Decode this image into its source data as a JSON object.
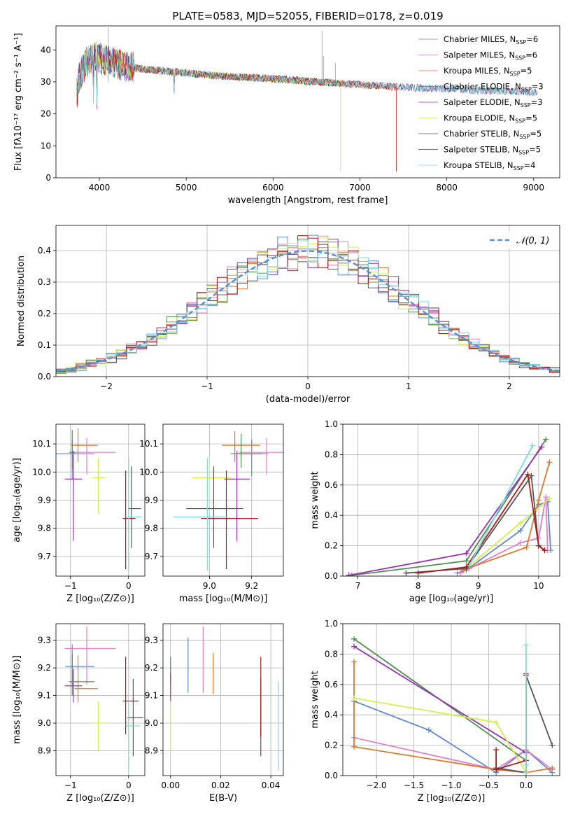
{
  "figure_title": "PLATE=0583, MJD=52055, FIBERID=0178, z=0.019",
  "colors": {
    "Chabrier MILES": "#5f87d8",
    "Salpeter MILES": "#e57fc5",
    "Kroupa MILES": "#e0782b",
    "Chabrier ELODIE": "#4e8f4f",
    "Salpeter ELODIE": "#9a30b8",
    "Kroupa ELODIE": "#d4f04a",
    "Chabrier STELIB": "#555555",
    "Salpeter STELIB": "#b01818",
    "Kroupa STELIB": "#78dde2",
    "normal": "#5b8fd6"
  },
  "chart_data": [
    {
      "id": "spectrum",
      "type": "line",
      "xlabel": "wavelength [Angstrom, rest frame]",
      "ylabel": "Flux [fλ10⁻¹⁷ erg cm⁻² s⁻¹ A⁻¹]",
      "xlim": [
        3500,
        9300
      ],
      "ylim": [
        0,
        47.5
      ],
      "xticks": [
        4000,
        5000,
        6000,
        7000,
        8000,
        9000
      ],
      "yticks": [
        0,
        10,
        20,
        30,
        40
      ],
      "grid": false,
      "legend_position": "upper-right",
      "continuum": {
        "x": [
          3750,
          3850,
          3950,
          4050,
          4150,
          4300,
          4500,
          4700,
          4900,
          5100,
          5300,
          5600,
          6000,
          6400,
          6800,
          7200,
          7600,
          8000,
          8400,
          8800,
          9050
        ],
        "y": [
          30,
          36,
          38,
          37,
          36,
          35,
          34,
          33.5,
          33,
          32.5,
          32,
          31.5,
          31,
          30.2,
          29.5,
          28.8,
          28.2,
          27.8,
          27.3,
          27,
          26.5
        ]
      },
      "series": [
        {
          "name": "Chabrier MILES",
          "nssp": 6
        },
        {
          "name": "Salpeter MILES",
          "nssp": 6
        },
        {
          "name": "Kroupa MILES",
          "nssp": 5
        },
        {
          "name": "Chabrier ELODIE",
          "nssp": 3
        },
        {
          "name": "Salpeter ELODIE",
          "nssp": 3
        },
        {
          "name": "Kroupa ELODIE",
          "nssp": 5
        },
        {
          "name": "Chabrier STELIB",
          "nssp": 5
        },
        {
          "name": "Salpeter STELIB",
          "nssp": 5
        },
        {
          "name": "Kroupa STELIB",
          "nssp": 4
        }
      ]
    },
    {
      "id": "residuals",
      "type": "line",
      "xlabel": "(data-model)/error",
      "ylabel": "Normed distribution",
      "xlim": [
        -2.5,
        2.5
      ],
      "ylim": [
        0,
        0.48
      ],
      "xticks": [
        -2,
        -1,
        0,
        1,
        2
      ],
      "yticks": [
        0.0,
        0.1,
        0.2,
        0.3,
        0.4
      ],
      "grid": true,
      "legend": "𝒩(0, 1)",
      "legend_position": "upper-right",
      "bin_width": 0.1
    },
    {
      "id": "age-vs-Z",
      "type": "scatter",
      "xlabel": "Z [log₁₀(Z/Z⊙)]",
      "ylabel": "age  [log₁₀(age/yr)]",
      "xlim": [
        -1.25,
        0.28
      ],
      "ylim": [
        9.63,
        10.17
      ],
      "xticks": [
        -1,
        0
      ],
      "yticks": [
        9.7,
        9.8,
        9.9,
        10.0,
        10.1
      ],
      "grid": true,
      "points": [
        {
          "series": "Chabrier MILES",
          "x": -0.97,
          "xerr": [
            0.28,
            0.38
          ],
          "y": 10.065,
          "yerr": [
            0.09,
            0.05
          ]
        },
        {
          "series": "Salpeter MILES",
          "x": -0.72,
          "xerr": [
            0.22,
            0.5
          ],
          "y": 10.07,
          "yerr": [
            0.08,
            0.05
          ]
        },
        {
          "series": "Kroupa MILES",
          "x": -0.87,
          "xerr": [
            0.12,
            0.34
          ],
          "y": 10.095,
          "yerr": [
            0.06,
            0.06
          ]
        },
        {
          "series": "Chabrier ELODIE",
          "x": -0.97,
          "xerr": [
            0.05,
            0.05
          ],
          "y": 10.07,
          "yerr": [
            0.06,
            0.08
          ]
        },
        {
          "series": "Salpeter ELODIE",
          "x": -0.95,
          "xerr": [
            0.15,
            0.15
          ],
          "y": 9.975,
          "yerr": [
            0.22,
            0.1
          ]
        },
        {
          "series": "Kroupa ELODIE",
          "x": -0.52,
          "xerr": [
            0.1,
            0.12
          ],
          "y": 9.98,
          "yerr": [
            0.13,
            0.07
          ]
        },
        {
          "series": "Chabrier STELIB",
          "x": 0.05,
          "xerr": [
            0.06,
            0.17
          ],
          "y": 9.87,
          "yerr": [
            0.14,
            0.15
          ]
        },
        {
          "series": "Salpeter STELIB",
          "x": -0.05,
          "xerr": [
            0.05,
            0.17
          ],
          "y": 9.835,
          "yerr": [
            0.18,
            0.17
          ]
        },
        {
          "series": "Kroupa STELIB",
          "x": 0.0,
          "xerr": [
            0.05,
            0.22
          ],
          "y": 9.84,
          "yerr": [
            0.19,
            0.21
          ]
        }
      ]
    },
    {
      "id": "age-vs-mass",
      "type": "scatter",
      "xlabel": "mass [log₁₀(M/M⊙)]",
      "ylabel": "",
      "xlim": [
        8.78,
        9.35
      ],
      "ylim": [
        9.63,
        10.17
      ],
      "xticks": [
        9.0,
        9.2
      ],
      "yticks": [
        9.7,
        9.8,
        9.9,
        10.0,
        10.1
      ],
      "grid": true,
      "points": [
        {
          "series": "Chabrier MILES",
          "x": 9.2,
          "xerr": [
            0.07,
            0.08
          ],
          "y": 10.065,
          "yerr": [
            0.08,
            0.05
          ]
        },
        {
          "series": "Salpeter MILES",
          "x": 9.27,
          "xerr": [
            0.13,
            0.08
          ],
          "y": 10.07,
          "yerr": [
            0.08,
            0.05
          ]
        },
        {
          "series": "Kroupa MILES",
          "x": 9.12,
          "xerr": [
            0.06,
            0.12
          ],
          "y": 10.095,
          "yerr": [
            0.06,
            0.05
          ]
        },
        {
          "series": "Chabrier ELODIE",
          "x": 9.15,
          "xerr": [
            0.05,
            0.1
          ],
          "y": 10.065,
          "yerr": [
            0.05,
            0.07
          ]
        },
        {
          "series": "Salpeter ELODIE",
          "x": 9.13,
          "xerr": [
            0.06,
            0.06
          ],
          "y": 9.975,
          "yerr": [
            0.22,
            0.1
          ]
        },
        {
          "series": "Kroupa ELODIE",
          "x": 9.0,
          "xerr": [
            0.08,
            0.1
          ],
          "y": 9.98,
          "yerr": [
            0.13,
            0.07
          ]
        },
        {
          "series": "Chabrier STELIB",
          "x": 9.02,
          "xerr": [
            0.13,
            0.14
          ],
          "y": 9.87,
          "yerr": [
            0.14,
            0.15
          ]
        },
        {
          "series": "Salpeter STELIB",
          "x": 9.08,
          "xerr": [
            0.12,
            0.15
          ],
          "y": 9.835,
          "yerr": [
            0.18,
            0.17
          ]
        },
        {
          "series": "Kroupa STELIB",
          "x": 8.99,
          "xerr": [
            0.16,
            0.09
          ],
          "y": 9.84,
          "yerr": [
            0.19,
            0.21
          ]
        }
      ]
    },
    {
      "id": "weight-vs-age",
      "type": "line",
      "xlabel": "age  [log₁₀(age/yr)]",
      "ylabel": "mass weight",
      "xlim": [
        6.75,
        10.35
      ],
      "ylim": [
        0,
        1
      ],
      "xticks": [
        7,
        8,
        9,
        10
      ],
      "yticks": [
        0.0,
        0.2,
        0.4,
        0.6,
        0.8,
        1.0
      ],
      "grid": true,
      "series": [
        {
          "name": "Chabrier MILES",
          "x": [
            8.65,
            8.8,
            9.7,
            10.0,
            10.15,
            10.2
          ],
          "y": [
            0.02,
            0.04,
            0.3,
            0.47,
            0.49,
            0.17
          ]
        },
        {
          "name": "Salpeter MILES",
          "x": [
            8.7,
            8.85,
            9.7,
            10.0,
            10.12,
            10.15
          ],
          "y": [
            0.02,
            0.05,
            0.22,
            0.25,
            0.52,
            0.17
          ]
        },
        {
          "name": "Kroupa MILES",
          "x": [
            8.75,
            9.8,
            10.0,
            10.18
          ],
          "y": [
            0.04,
            0.19,
            0.5,
            0.75
          ]
        },
        {
          "name": "Chabrier ELODIE",
          "x": [
            6.9,
            8.8,
            10.12
          ],
          "y": [
            0.005,
            0.1,
            0.9
          ]
        },
        {
          "name": "Salpeter ELODIE",
          "x": [
            6.85,
            8.8,
            10.05
          ],
          "y": [
            0.005,
            0.15,
            0.85
          ]
        },
        {
          "name": "Kroupa ELODIE",
          "x": [
            8.8,
            9.7,
            10.18
          ],
          "y": [
            0.05,
            0.35,
            0.51
          ]
        },
        {
          "name": "Chabrier STELIB",
          "x": [
            7.8,
            8.8,
            9.88,
            10.0,
            10.1
          ],
          "y": [
            0.02,
            0.05,
            0.66,
            0.2,
            0.17
          ]
        },
        {
          "name": "Salpeter STELIB",
          "x": [
            8.0,
            8.8,
            9.82,
            10.0,
            10.1
          ],
          "y": [
            0.02,
            0.06,
            0.67,
            0.2,
            0.17
          ]
        },
        {
          "name": "Kroupa STELIB",
          "x": [
            8.85,
            9.9
          ],
          "y": [
            0.07,
            0.86
          ]
        }
      ]
    },
    {
      "id": "mass-vs-Z",
      "type": "scatter",
      "xlabel": "Z [log₁₀(Z/Z⊙)]",
      "ylabel": "mass [log₁₀(M/M⊙)]",
      "xlim": [
        -1.25,
        0.28
      ],
      "ylim": [
        8.81,
        9.36
      ],
      "xticks": [
        -1,
        0
      ],
      "yticks": [
        8.9,
        9.0,
        9.1,
        9.2,
        9.3
      ],
      "grid": true,
      "points": [
        {
          "series": "Chabrier MILES",
          "x": -0.97,
          "xerr": [
            0.12,
            0.38
          ],
          "y": 9.205,
          "yerr": [
            0.07,
            0.08
          ]
        },
        {
          "series": "Salpeter MILES",
          "x": -0.72,
          "xerr": [
            0.38,
            0.5
          ],
          "y": 9.27,
          "yerr": [
            0.13,
            0.08
          ]
        },
        {
          "series": "Kroupa MILES",
          "x": -0.87,
          "xerr": [
            0.06,
            0.34
          ],
          "y": 9.125,
          "yerr": [
            0.05,
            0.12
          ]
        },
        {
          "series": "Chabrier ELODIE",
          "x": -0.97,
          "xerr": [
            0.05,
            0.38
          ],
          "y": 9.15,
          "yerr": [
            0.05,
            0.1
          ]
        },
        {
          "series": "Salpeter ELODIE",
          "x": -0.95,
          "xerr": [
            0.15,
            0.15
          ],
          "y": 9.135,
          "yerr": [
            0.06,
            0.06
          ]
        },
        {
          "series": "Kroupa ELODIE",
          "x": -0.52,
          "xerr": [
            0.1,
            0.12
          ],
          "y": 9.0,
          "yerr": [
            0.1,
            0.08
          ]
        },
        {
          "series": "Chabrier STELIB",
          "x": 0.08,
          "xerr": [
            0.1,
            0.17
          ],
          "y": 9.02,
          "yerr": [
            0.14,
            0.14
          ]
        },
        {
          "series": "Salpeter STELIB",
          "x": -0.05,
          "xerr": [
            0.05,
            0.22
          ],
          "y": 9.08,
          "yerr": [
            0.12,
            0.16
          ]
        },
        {
          "series": "Kroupa STELIB",
          "x": 0.0,
          "xerr": [
            0.05,
            0.2
          ],
          "y": 8.99,
          "yerr": [
            0.16,
            0.09
          ]
        }
      ]
    },
    {
      "id": "mass-vs-EBV",
      "type": "scatter",
      "xlabel": "E(B-V)",
      "ylabel": "",
      "xlim": [
        -0.003,
        0.045
      ],
      "ylim": [
        8.81,
        9.36
      ],
      "xticks": [
        0.0,
        0.02,
        0.04
      ],
      "yticks": [
        8.9,
        9.0,
        9.1,
        9.2,
        9.3
      ],
      "grid": true,
      "points": [
        {
          "series": "Chabrier MILES",
          "x": 0.007,
          "xerr": [
            0,
            0
          ],
          "y": 9.21,
          "yerr": [
            0.1,
            0.1
          ]
        },
        {
          "series": "Salpeter MILES",
          "x": 0.013,
          "xerr": [
            0,
            0
          ],
          "y": 9.23,
          "yerr": [
            0.12,
            0.12
          ]
        },
        {
          "series": "Kroupa MILES",
          "x": 0.017,
          "xerr": [
            0,
            0
          ],
          "y": 9.175,
          "yerr": [
            0.07,
            0.08
          ]
        },
        {
          "series": "Chabrier ELODIE",
          "x": 0.0,
          "xerr": [
            0,
            0
          ],
          "y": 9.19,
          "yerr": [
            0.05,
            0.05
          ]
        },
        {
          "series": "Salpeter ELODIE",
          "x": 0.0,
          "xerr": [
            0,
            0
          ],
          "y": 9.13,
          "yerr": [
            0.05,
            0.05
          ]
        },
        {
          "series": "Kroupa ELODIE",
          "x": 0.0,
          "xerr": [
            0,
            0
          ],
          "y": 8.98,
          "yerr": [
            0.08,
            0.08
          ]
        },
        {
          "series": "Chabrier STELIB",
          "x": 0.036,
          "xerr": [
            0,
            0
          ],
          "y": 9.02,
          "yerr": [
            0.14,
            0.14
          ]
        },
        {
          "series": "Salpeter STELIB",
          "x": 0.036,
          "xerr": [
            0,
            0
          ],
          "y": 9.09,
          "yerr": [
            0.14,
            0.15
          ]
        },
        {
          "series": "Kroupa STELIB",
          "x": 0.043,
          "xerr": [
            0,
            0
          ],
          "y": 8.99,
          "yerr": [
            0.16,
            0.16
          ]
        }
      ]
    },
    {
      "id": "weight-vs-Z",
      "type": "line",
      "xlabel": "Z [log₁₀(Z/Z⊙)]",
      "ylabel": "mass weight",
      "xlim": [
        -2.45,
        0.45
      ],
      "ylim": [
        0,
        1
      ],
      "xticks": [
        -2.0,
        -1.5,
        -1.0,
        -0.5,
        0.0
      ],
      "yticks": [
        0.0,
        0.2,
        0.4,
        0.6,
        0.8,
        1.0
      ],
      "grid": true,
      "series": [
        {
          "name": "Chabrier MILES",
          "x": [
            -2.3,
            -1.3,
            -0.4,
            0.0,
            0.35
          ],
          "y": [
            0.49,
            0.3,
            0.02,
            0.17,
            0.02
          ]
        },
        {
          "name": "Salpeter MILES",
          "x": [
            -2.3,
            -0.4,
            0.0,
            0.35
          ],
          "y": [
            0.25,
            0.04,
            0.17,
            0.04
          ]
        },
        {
          "name": "Kroupa MILES",
          "x": [
            -2.3,
            -2.3,
            -0.4,
            0.0,
            0.35
          ],
          "y": [
            0.75,
            0.19,
            0.04,
            0.02,
            0.05
          ]
        },
        {
          "name": "Chabrier ELODIE",
          "x": [
            -2.3,
            0.0,
            0.0
          ],
          "y": [
            0.9,
            0.1,
            0.02
          ]
        },
        {
          "name": "Salpeter ELODIE",
          "x": [
            -2.3,
            0.0,
            0.0
          ],
          "y": [
            0.85,
            0.15,
            0.02
          ]
        },
        {
          "name": "Kroupa ELODIE",
          "x": [
            -2.3,
            -0.4,
            0.0,
            0.0
          ],
          "y": [
            0.51,
            0.35,
            0.02,
            0.14
          ]
        },
        {
          "name": "Chabrier STELIB",
          "x": [
            -0.4,
            0.0,
            0.0,
            0.35
          ],
          "y": [
            0.05,
            0.02,
            0.66,
            0.2
          ]
        },
        {
          "name": "Salpeter STELIB",
          "x": [
            -0.4,
            -0.4,
            0.0,
            0.0
          ],
          "y": [
            0.17,
            0.04,
            0.1,
            0.67
          ]
        },
        {
          "name": "Kroupa STELIB",
          "x": [
            0.0,
            0.0,
            0.0
          ],
          "y": [
            0.02,
            0.86,
            0.07
          ]
        }
      ]
    }
  ]
}
